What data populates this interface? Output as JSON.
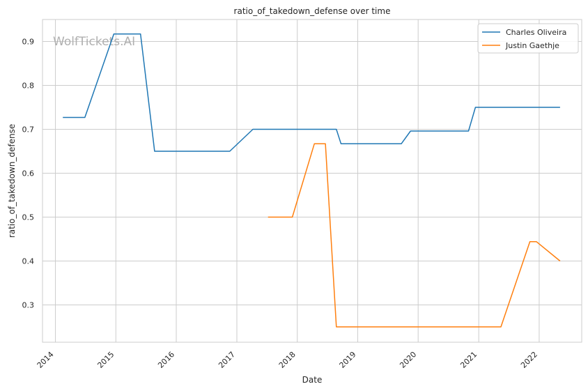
{
  "chart_data": {
    "type": "line",
    "title": "ratio_of_takedown_defense over time",
    "xlabel": "Date",
    "ylabel": "ratio_of_takedown_defense",
    "watermark": "WolfTickets.AI",
    "xlim": [
      "2013-10-15",
      "2022-09-15"
    ],
    "ylim": [
      0.215,
      0.95
    ],
    "x_ticks": [
      "2014",
      "2015",
      "2016",
      "2017",
      "2018",
      "2019",
      "2020",
      "2021",
      "2022"
    ],
    "y_ticks": [
      "0.3",
      "0.4",
      "0.5",
      "0.6",
      "0.7",
      "0.8",
      "0.9"
    ],
    "grid": true,
    "legend_position": "top-right",
    "series": [
      {
        "name": "Charles Oliveira",
        "color": "#1f77b4",
        "points": [
          [
            "2014-02-15",
            0.727
          ],
          [
            "2014-06-28",
            0.727
          ],
          [
            "2014-12-20",
            0.917
          ],
          [
            "2015-05-30",
            0.917
          ],
          [
            "2015-08-23",
            0.65
          ],
          [
            "2016-11-19",
            0.65
          ],
          [
            "2017-04-08",
            0.7
          ],
          [
            "2018-08-25",
            0.7
          ],
          [
            "2018-09-22",
            0.667
          ],
          [
            "2019-09-21",
            0.667
          ],
          [
            "2019-11-16",
            0.696
          ],
          [
            "2020-10-31",
            0.696
          ],
          [
            "2020-12-12",
            0.75
          ],
          [
            "2022-05-07",
            0.75
          ]
        ]
      },
      {
        "name": "Justin Gaethje",
        "color": "#ff7f0e",
        "points": [
          [
            "2017-07-08",
            0.5
          ],
          [
            "2017-12-02",
            0.5
          ],
          [
            "2018-04-14",
            0.667
          ],
          [
            "2018-06-20",
            0.667
          ],
          [
            "2018-08-25",
            0.25
          ],
          [
            "2021-05-15",
            0.25
          ],
          [
            "2021-11-06",
            0.444
          ],
          [
            "2021-12-15",
            0.444
          ],
          [
            "2022-05-07",
            0.4
          ]
        ]
      }
    ]
  }
}
